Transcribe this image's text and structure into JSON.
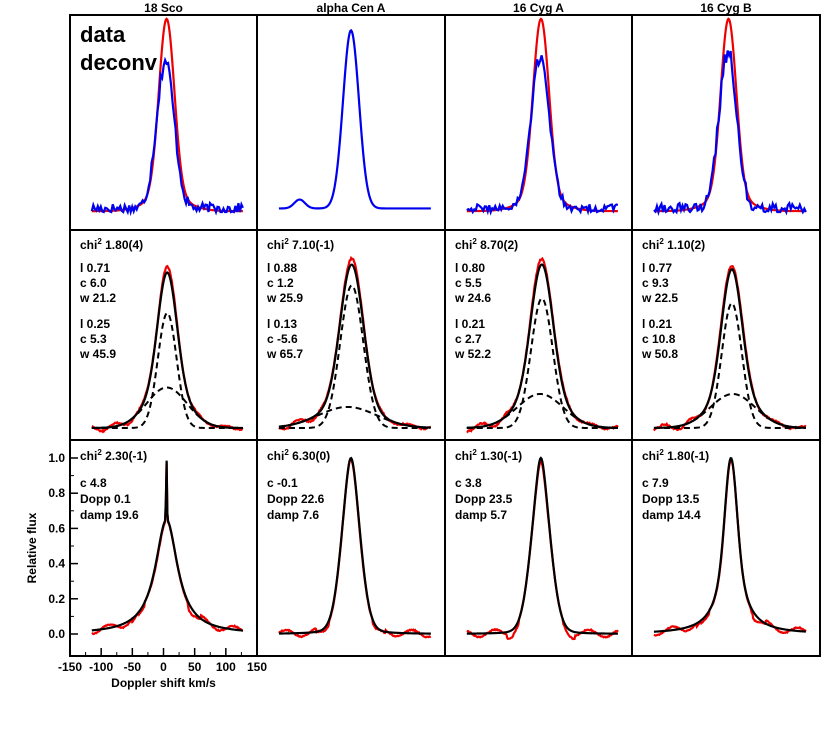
{
  "colors": {
    "data": "#0000ee",
    "deconv": "#ee0000",
    "model": "#000000",
    "frame": "#000000"
  },
  "legend": {
    "data_label": "data",
    "deconv_label": "deconv"
  },
  "axes": {
    "ylabel": "Relative flux",
    "xlabel": "Doppler shift km/s",
    "xticks": [
      "-150",
      "-100",
      "-50",
      "0",
      "50",
      "100",
      "150"
    ],
    "yticks": [
      "0.0",
      "0.2",
      "0.4",
      "0.6",
      "0.8",
      "1.0"
    ]
  },
  "stars": [
    "18 Sco",
    "alpha Cen A",
    "16 Cyg A",
    "16 Cyg B"
  ],
  "chart_data": [
    {
      "type": "line",
      "row": "observed profiles",
      "xlim": [
        -150,
        150
      ],
      "ylim": [
        0,
        1.12
      ],
      "series_names": [
        "data",
        "deconv"
      ],
      "panels": [
        {
          "star": "18 Sco",
          "data": {
            "noise": 0.06,
            "peak": 0.83,
            "center": 3,
            "width": 20
          },
          "deconv": {
            "peak": 1.0,
            "center": 5,
            "width": 17.5
          }
        },
        {
          "star": "alpha Cen A",
          "data": {
            "noise": 0.0,
            "peak": 1.0,
            "center": 0,
            "width": 18,
            "bump_x": -82,
            "bump_h": 0.05
          }
        },
        {
          "star": "16 Cyg A",
          "data": {
            "noise": 0.05,
            "peak": 0.85,
            "center": 3,
            "width": 21
          },
          "deconv": {
            "peak": 1.0,
            "center": 4,
            "width": 18
          }
        },
        {
          "star": "16 Cyg B",
          "data": {
            "noise": 0.06,
            "peak": 0.88,
            "center": 3,
            "width": 20
          },
          "deconv": {
            "peak": 1.0,
            "center": 4,
            "width": 17.5
          }
        }
      ]
    },
    {
      "type": "line",
      "row": "two-Gaussian fits",
      "xlim": [
        -150,
        150
      ],
      "ylim": [
        0,
        1.1
      ],
      "panels": [
        {
          "star": "18 Sco",
          "chi": "1.80(4)",
          "g1": {
            "l": 0.71,
            "c": 6.0,
            "w": 21.2
          },
          "g2": {
            "l": 0.25,
            "c": 5.3,
            "w": 45.9
          },
          "labels": {
            "l1": "l  0.71",
            "c1": "c  6.0",
            "w1": "w  21.2",
            "l2": "l  0.25",
            "c2": "c  5.3",
            "w2": "w  45.9"
          }
        },
        {
          "star": "alpha Cen A",
          "chi": "7.10(-1)",
          "g1": {
            "l": 0.88,
            "c": 1.2,
            "w": 25.9
          },
          "g2": {
            "l": 0.13,
            "c": -5.6,
            "w": 65.7
          },
          "labels": {
            "l1": "l  0.88",
            "c1": "c  1.2",
            "w1": "w  25.9",
            "l2": "l  0.13",
            "c2": "c  -5.6",
            "w2": "w  65.7"
          }
        },
        {
          "star": "16 Cyg A",
          "chi": "8.70(2)",
          "g1": {
            "l": 0.8,
            "c": 5.5,
            "w": 24.6
          },
          "g2": {
            "l": 0.21,
            "c": 2.7,
            "w": 52.2
          },
          "labels": {
            "l1": "l  0.80",
            "c1": "c  5.5",
            "w1": "w  24.6",
            "l2": "l  0.21",
            "c2": "c  2.7",
            "w2": "w  52.2"
          }
        },
        {
          "star": "16 Cyg B",
          "chi": "1.10(2)",
          "g1": {
            "l": 0.77,
            "c": 9.3,
            "w": 22.5
          },
          "g2": {
            "l": 0.21,
            "c": 10.8,
            "w": 50.8
          },
          "labels": {
            "l1": "l  0.77",
            "c1": "c  9.3",
            "w1": "w  22.5",
            "l2": "l  0.21",
            "c2": "c  10.8",
            "w2": "w  50.8"
          }
        }
      ]
    },
    {
      "type": "line",
      "row": "Voigt fits",
      "xlim": [
        -150,
        150
      ],
      "ylim": [
        -0.1,
        1.1
      ],
      "panels": [
        {
          "star": "18 Sco",
          "chi": "2.30(-1)",
          "c": 4.8,
          "dopp": 0.1,
          "damp": 19.6,
          "labels": {
            "c": "c      4.8",
            "dopp": "Dopp 0.1",
            "damp": "damp 19.6"
          }
        },
        {
          "star": "alpha Cen A",
          "chi": "6.30(0)",
          "c": -0.1,
          "dopp": 22.6,
          "damp": 7.6,
          "labels": {
            "c": "c      -0.1",
            "dopp": "Dopp 22.6",
            "damp": "damp 7.6"
          }
        },
        {
          "star": "16 Cyg A",
          "chi": "1.30(-1)",
          "c": 3.8,
          "dopp": 23.5,
          "damp": 5.7,
          "labels": {
            "c": "c      3.8",
            "dopp": "Dopp 23.5",
            "damp": "damp 5.7"
          }
        },
        {
          "star": "16 Cyg B",
          "chi": "1.80(-1)",
          "c": 7.9,
          "dopp": 13.5,
          "damp": 14.4,
          "labels": {
            "c": "c      7.9",
            "dopp": "Dopp 13.5",
            "damp": "damp 14.4"
          }
        }
      ]
    }
  ]
}
